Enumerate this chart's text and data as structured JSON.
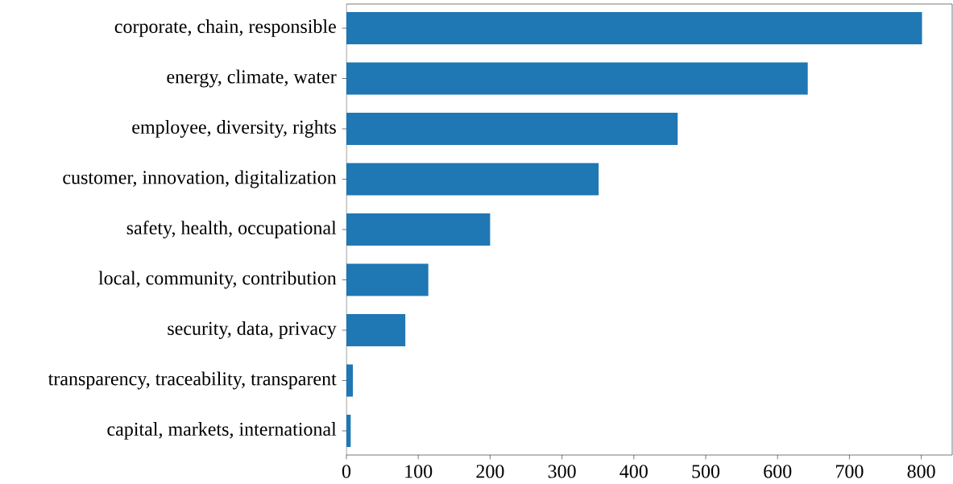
{
  "chart_data": {
    "type": "bar",
    "orientation": "horizontal",
    "categories": [
      "corporate, chain, responsible",
      "energy, climate, water",
      "employee, diversity, rights",
      "customer, innovation, digitalization",
      "safety, health, occupational",
      "local, community, contribution",
      "security, data, privacy",
      "transparency, traceability, transparent",
      "capital, markets, international"
    ],
    "values": [
      801,
      642,
      461,
      351,
      200,
      114,
      82,
      9,
      6
    ],
    "color": "#1f77b4",
    "xlim": [
      0,
      843
    ],
    "xticks": [
      0,
      100,
      200,
      300,
      400,
      500,
      600,
      700,
      800
    ],
    "grid": false
  }
}
